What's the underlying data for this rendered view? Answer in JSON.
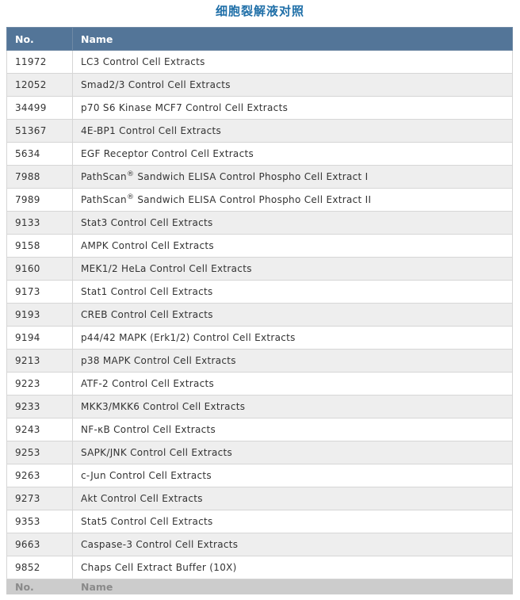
{
  "page": {
    "title": "细胞裂解液对照"
  },
  "table": {
    "headers": [
      "No.",
      "Name"
    ],
    "footer": [
      "No.",
      "Name"
    ],
    "rows": [
      {
        "no": "11972",
        "name": "LC3 Control Cell Extracts"
      },
      {
        "no": "12052",
        "name": "Smad2/3 Control Cell Extracts"
      },
      {
        "no": "34499",
        "name": "p70 S6 Kinase MCF7 Control Cell Extracts"
      },
      {
        "no": "51367",
        "name": "4E-BP1 Control Cell Extracts"
      },
      {
        "no": "5634",
        "name": "EGF Receptor Control Cell Extracts"
      },
      {
        "no": "7988",
        "name_pre": "PathScan",
        "name_sup": "®",
        "name_post": " Sandwich ELISA Control Phospho Cell Extract I"
      },
      {
        "no": "7989",
        "name_pre": "PathScan",
        "name_sup": "®",
        "name_post": " Sandwich ELISA Control Phospho Cell Extract II"
      },
      {
        "no": "9133",
        "name": "Stat3 Control Cell Extracts"
      },
      {
        "no": "9158",
        "name": "AMPK Control Cell Extracts"
      },
      {
        "no": "9160",
        "name": "MEK1/2 HeLa Control Cell Extracts"
      },
      {
        "no": "9173",
        "name": "Stat1 Control Cell Extracts"
      },
      {
        "no": "9193",
        "name": "CREB Control Cell Extracts"
      },
      {
        "no": "9194",
        "name": "p44/42 MAPK (Erk1/2) Control Cell Extracts"
      },
      {
        "no": "9213",
        "name": "p38 MAPK Control Cell Extracts"
      },
      {
        "no": "9223",
        "name": "ATF-2 Control Cell Extracts"
      },
      {
        "no": "9233",
        "name": "MKK3/MKK6 Control Cell Extracts"
      },
      {
        "no": "9243",
        "name": "NF-κB Control Cell Extracts"
      },
      {
        "no": "9253",
        "name": "SAPK/JNK Control Cell Extracts"
      },
      {
        "no": "9263",
        "name": "c-Jun Control Cell Extracts"
      },
      {
        "no": "9273",
        "name": "Akt Control Cell Extracts"
      },
      {
        "no": "9353",
        "name": "Stat5 Control Cell Extracts"
      },
      {
        "no": "9663",
        "name": "Caspase-3 Control Cell Extracts"
      },
      {
        "no": "9852",
        "name": "Chaps Cell Extract Buffer (10X)"
      }
    ]
  }
}
